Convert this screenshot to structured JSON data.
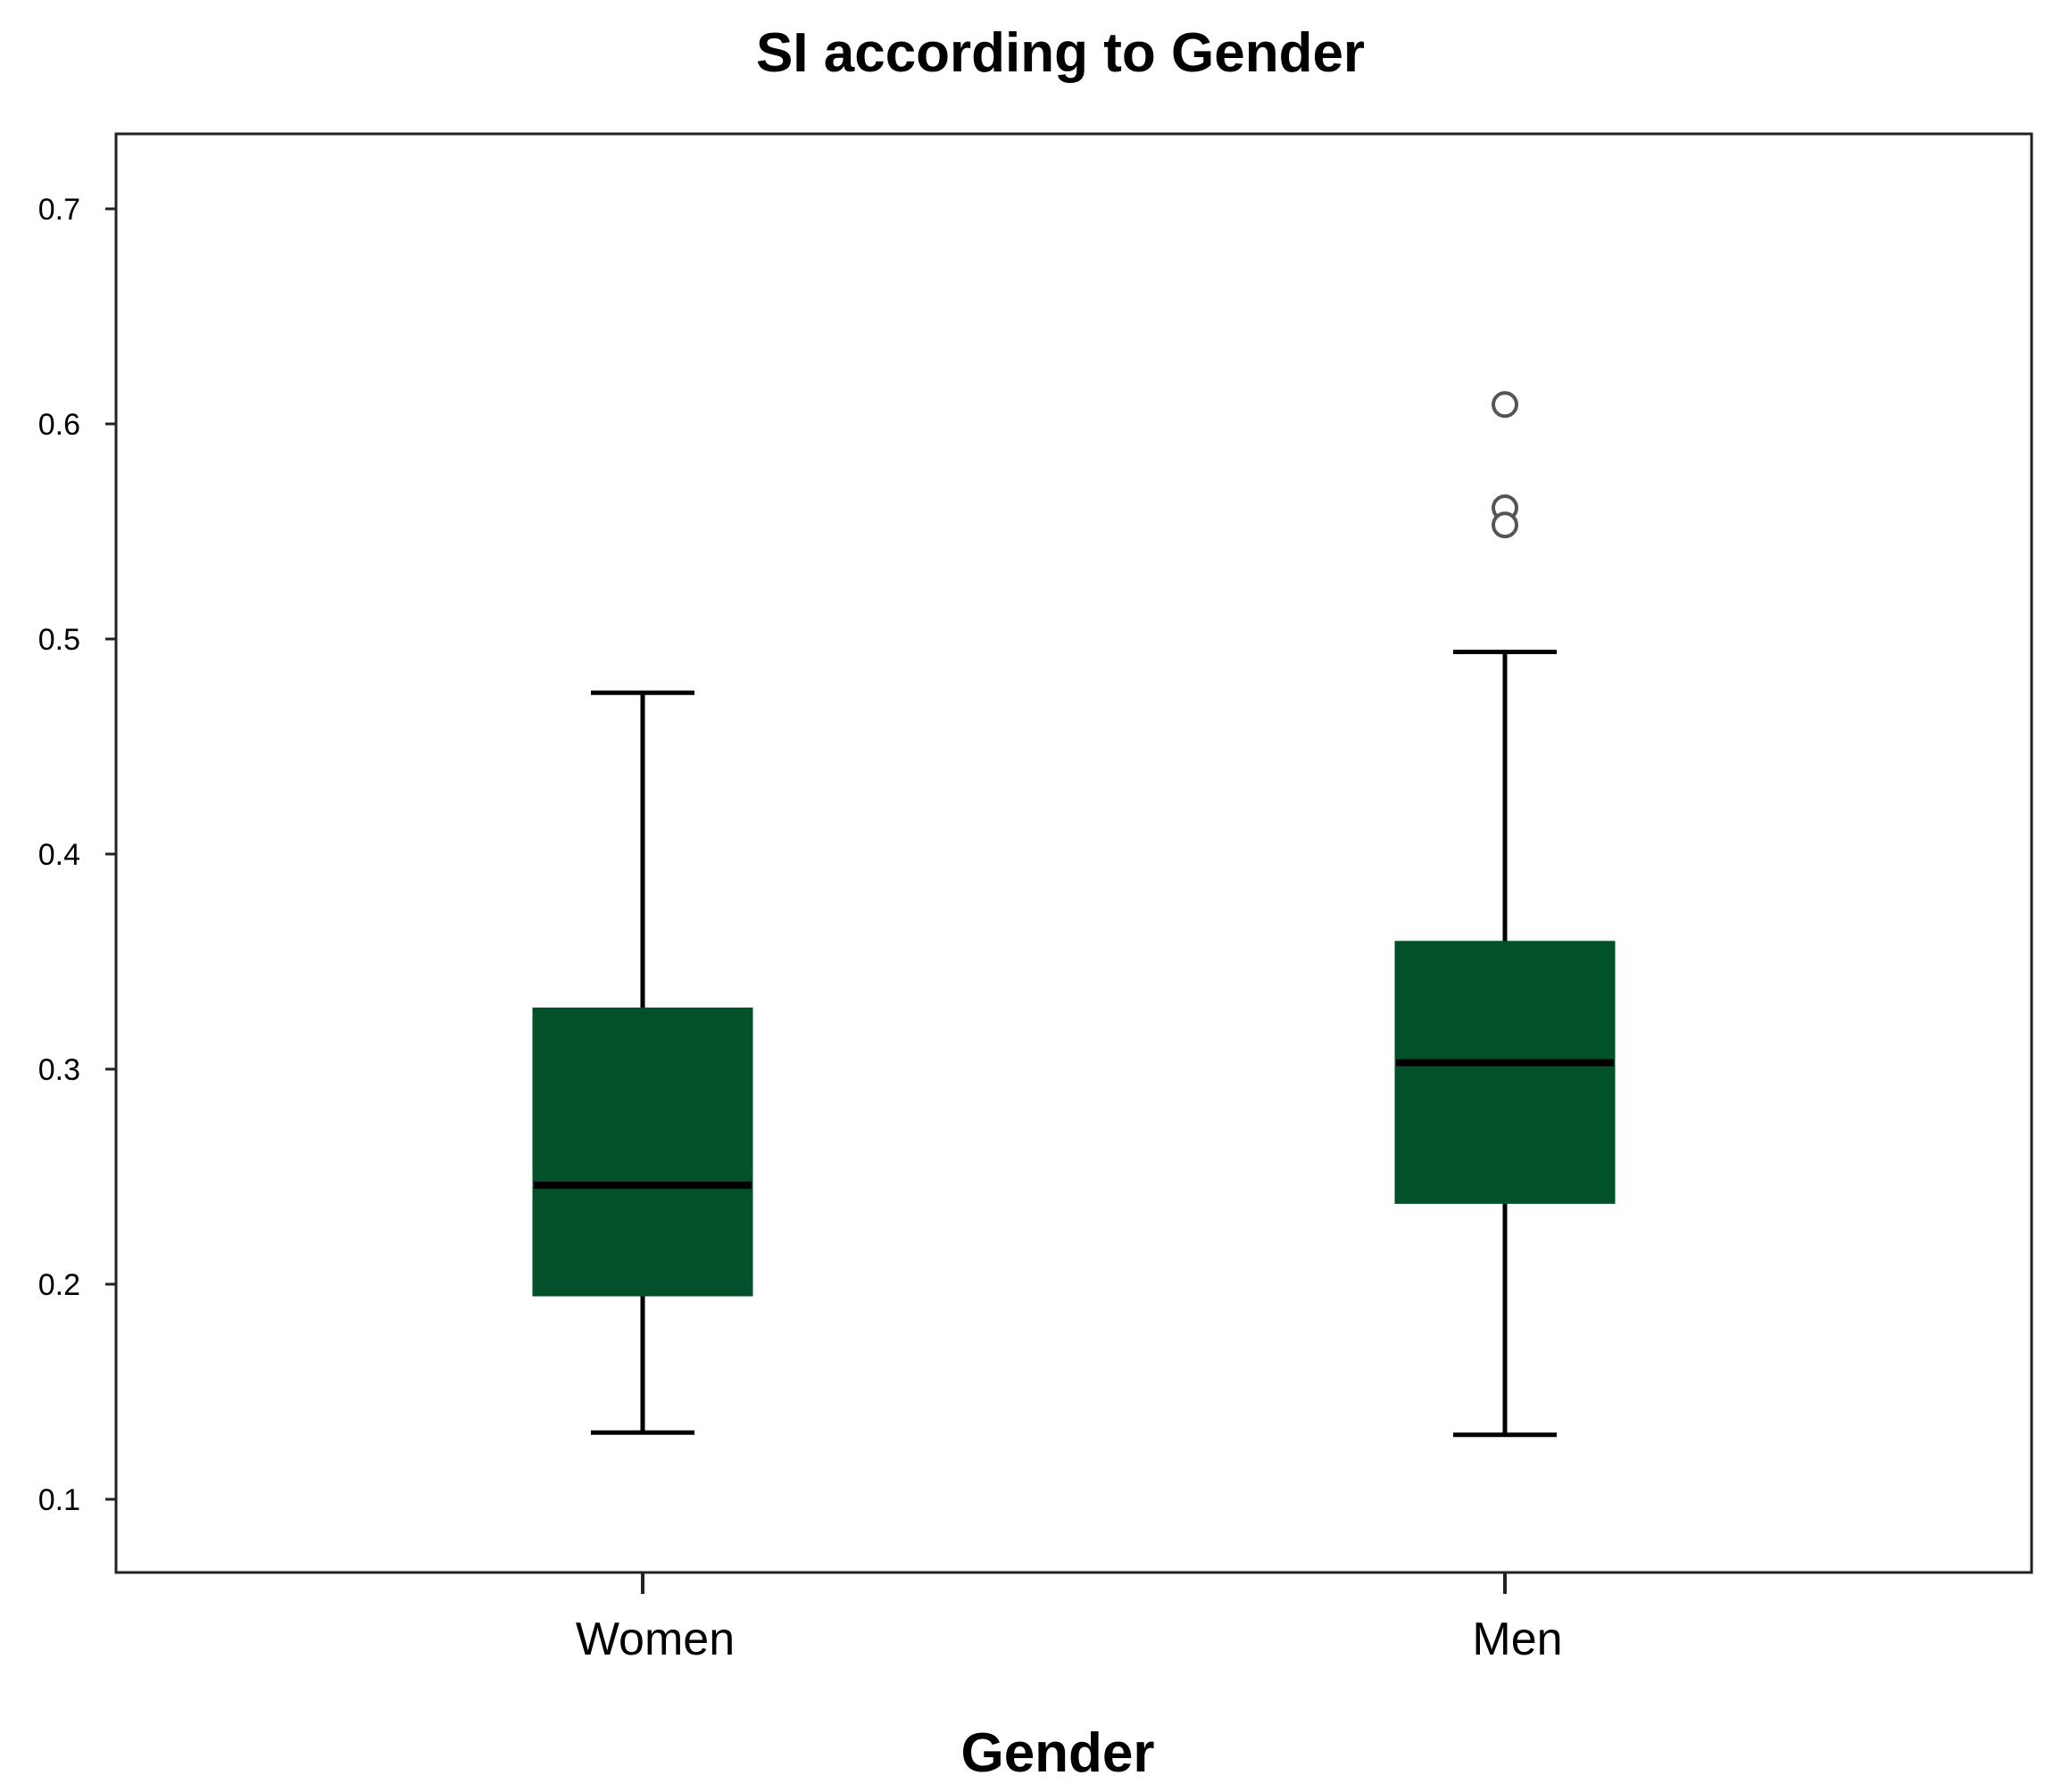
{
  "chart_data": {
    "type": "box",
    "title": "SI according to Gender",
    "xlabel": "Gender",
    "ylabel": "",
    "categories": [
      "Women",
      "Men"
    ],
    "ylim": [
      0.085,
      0.735
    ],
    "yticks": [
      0.1,
      0.2,
      0.3,
      0.4,
      0.5,
      0.6,
      0.7
    ],
    "ytick_labels": [
      "0.1",
      "0.2",
      "0.3",
      "0.4",
      "0.5",
      "0.6",
      "0.7"
    ],
    "boxes": [
      {
        "category": "Women",
        "whisker_low": 0.131,
        "q1": 0.195,
        "median": 0.246,
        "q3": 0.328,
        "whisker_high": 0.475,
        "outliers": []
      },
      {
        "category": "Men",
        "whisker_low": 0.13,
        "q1": 0.238,
        "median": 0.303,
        "q3": 0.359,
        "whisker_high": 0.494,
        "outliers": [
          0.609,
          0.561,
          0.553
        ]
      }
    ],
    "colors": {
      "box_fill": "#02512a",
      "line": "#000000",
      "outlier": "#555555"
    },
    "grid": false,
    "legend": "none"
  }
}
